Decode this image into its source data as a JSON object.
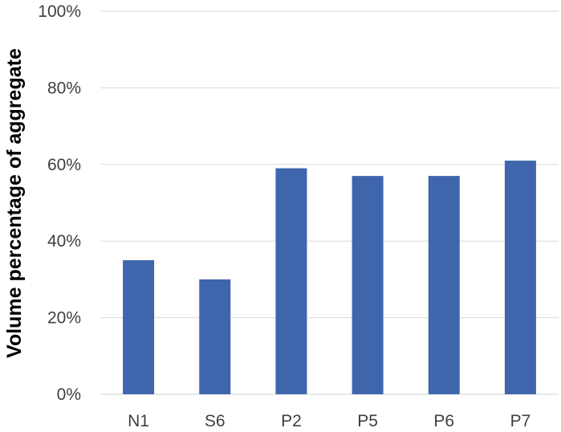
{
  "chart_data": {
    "type": "bar",
    "title": "",
    "xlabel": "",
    "ylabel": "Volume percentage of aggregate",
    "categories": [
      "N1",
      "S6",
      "P2",
      "P5",
      "P6",
      "P7"
    ],
    "values": [
      35,
      30,
      59,
      57,
      57,
      61
    ],
    "ylim": [
      0,
      100
    ],
    "yticks": [
      0,
      20,
      40,
      60,
      80,
      100
    ],
    "ytick_labels": [
      "0%",
      "20%",
      "40%",
      "60%",
      "80%",
      "100%"
    ],
    "grid": true,
    "legend": "none",
    "bar_color": "#3f66ad"
  }
}
